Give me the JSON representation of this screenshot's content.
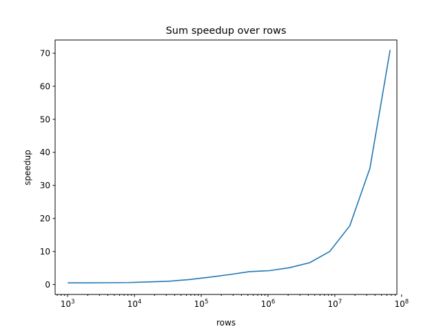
{
  "chart_data": {
    "type": "line",
    "title": "Sum speedup over rows",
    "xlabel": "rows",
    "ylabel": "speedup",
    "xscale": "log",
    "xlim": [
      650,
      85000000
    ],
    "ylim": [
      -3,
      74
    ],
    "grid": false,
    "legend": "none",
    "x_ticks": [
      {
        "value": 1000,
        "base": "10",
        "exp": "3"
      },
      {
        "value": 10000,
        "base": "10",
        "exp": "4"
      },
      {
        "value": 100000,
        "base": "10",
        "exp": "5"
      },
      {
        "value": 1000000,
        "base": "10",
        "exp": "6"
      },
      {
        "value": 10000000,
        "base": "10",
        "exp": "7"
      },
      {
        "value": 100000000,
        "base": "10",
        "exp": "8"
      }
    ],
    "y_ticks": [
      {
        "value": 0,
        "label": "0"
      },
      {
        "value": 10,
        "label": "10"
      },
      {
        "value": 20,
        "label": "20"
      },
      {
        "value": 30,
        "label": "30"
      },
      {
        "value": 40,
        "label": "40"
      },
      {
        "value": 50,
        "label": "50"
      },
      {
        "value": 60,
        "label": "60"
      },
      {
        "value": 70,
        "label": "70"
      }
    ],
    "series": [
      {
        "color": "#1f77b4",
        "x": [
          1024,
          2048,
          4096,
          8192,
          16384,
          32768,
          65536,
          131072,
          262144,
          524288,
          1048576,
          2097152,
          4194304,
          8388608,
          16777216,
          33554432,
          67108864
        ],
        "y": [
          0.5,
          0.5,
          0.55,
          0.6,
          0.8,
          1.0,
          1.5,
          2.2,
          3.0,
          3.9,
          4.2,
          5.1,
          6.6,
          10.0,
          17.8,
          35.2,
          70.8
        ]
      }
    ]
  }
}
